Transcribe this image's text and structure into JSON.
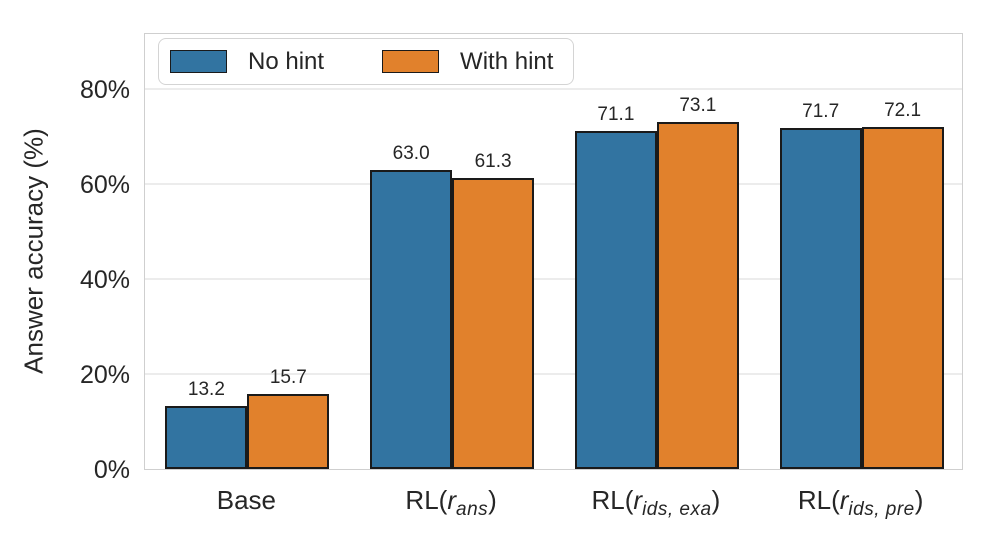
{
  "chart_data": {
    "type": "bar",
    "title": "",
    "xlabel": "",
    "ylabel": "Answer accuracy (%)",
    "ylim": [
      0,
      92
    ],
    "yticks": [
      0,
      20,
      40,
      60,
      80
    ],
    "ytick_labels": [
      "0%",
      "20%",
      "40%",
      "60%",
      "80%"
    ],
    "grid": "horizontal",
    "legend_position": "upper-left-inside",
    "categories": [
      {
        "prefix": "Base",
        "var": "",
        "sub": "",
        "suffix": ""
      },
      {
        "prefix": "RL(",
        "var": "r",
        "sub": "ans",
        "suffix": ")"
      },
      {
        "prefix": "RL(",
        "var": "r",
        "sub": "ids, exa",
        "suffix": ")"
      },
      {
        "prefix": "RL(",
        "var": "r",
        "sub": "ids, pre",
        "suffix": ")"
      }
    ],
    "series": [
      {
        "name": "No hint",
        "color": "#3274a1",
        "values": [
          13.2,
          63.0,
          71.1,
          71.7
        ]
      },
      {
        "name": "With hint",
        "color": "#e1812c",
        "values": [
          15.7,
          61.3,
          73.1,
          72.1
        ]
      }
    ],
    "bar_edge_color": "#1a1a1a",
    "grid_color": "#ececec",
    "spine_color": "#cfcfcf",
    "text_color": "#262626"
  }
}
